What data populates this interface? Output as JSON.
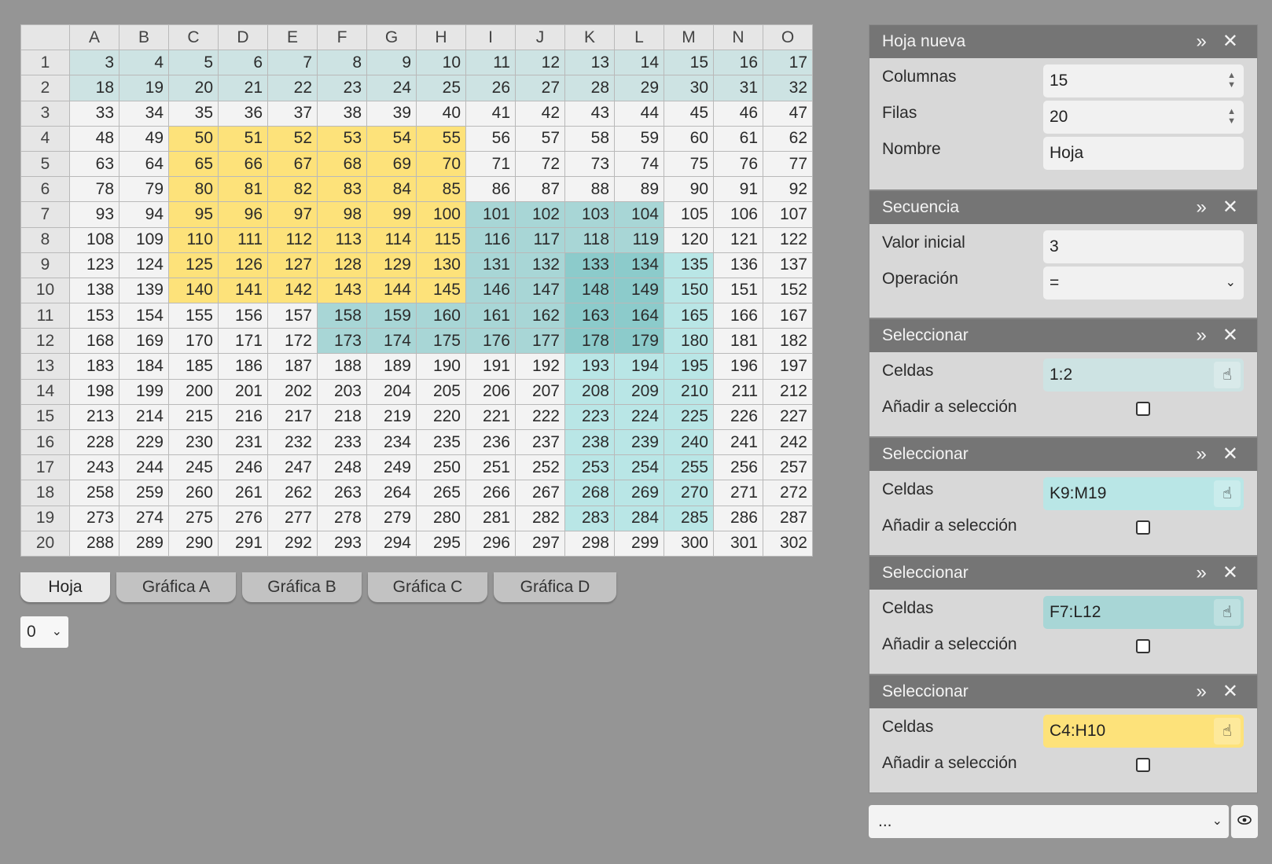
{
  "sheet": {
    "columns": [
      "A",
      "B",
      "C",
      "D",
      "E",
      "F",
      "G",
      "H",
      "I",
      "J",
      "K",
      "L",
      "M",
      "N",
      "O"
    ],
    "rows": [
      [
        3,
        4,
        5,
        6,
        7,
        8,
        9,
        10,
        11,
        12,
        13,
        14,
        15,
        16,
        17
      ],
      [
        18,
        19,
        20,
        21,
        22,
        23,
        24,
        25,
        26,
        27,
        28,
        29,
        30,
        31,
        32
      ],
      [
        33,
        34,
        35,
        36,
        37,
        38,
        39,
        40,
        41,
        42,
        43,
        44,
        45,
        46,
        47
      ],
      [
        48,
        49,
        50,
        51,
        52,
        53,
        54,
        55,
        56,
        57,
        58,
        59,
        60,
        61,
        62
      ],
      [
        63,
        64,
        65,
        66,
        67,
        68,
        69,
        70,
        71,
        72,
        73,
        74,
        75,
        76,
        77
      ],
      [
        78,
        79,
        80,
        81,
        82,
        83,
        84,
        85,
        86,
        87,
        88,
        89,
        90,
        91,
        92
      ],
      [
        93,
        94,
        95,
        96,
        97,
        98,
        99,
        100,
        101,
        102,
        103,
        104,
        105,
        106,
        107
      ],
      [
        108,
        109,
        110,
        111,
        112,
        113,
        114,
        115,
        116,
        117,
        118,
        119,
        120,
        121,
        122
      ],
      [
        123,
        124,
        125,
        126,
        127,
        128,
        129,
        130,
        131,
        132,
        133,
        134,
        135,
        136,
        137
      ],
      [
        138,
        139,
        140,
        141,
        142,
        143,
        144,
        145,
        146,
        147,
        148,
        149,
        150,
        151,
        152
      ],
      [
        153,
        154,
        155,
        156,
        157,
        158,
        159,
        160,
        161,
        162,
        163,
        164,
        165,
        166,
        167
      ],
      [
        168,
        169,
        170,
        171,
        172,
        173,
        174,
        175,
        176,
        177,
        178,
        179,
        180,
        181,
        182
      ],
      [
        183,
        184,
        185,
        186,
        187,
        188,
        189,
        190,
        191,
        192,
        193,
        194,
        195,
        196,
        197
      ],
      [
        198,
        199,
        200,
        201,
        202,
        203,
        204,
        205,
        206,
        207,
        208,
        209,
        210,
        211,
        212
      ],
      [
        213,
        214,
        215,
        216,
        217,
        218,
        219,
        220,
        221,
        222,
        223,
        224,
        225,
        226,
        227
      ],
      [
        228,
        229,
        230,
        231,
        232,
        233,
        234,
        235,
        236,
        237,
        238,
        239,
        240,
        241,
        242
      ],
      [
        243,
        244,
        245,
        246,
        247,
        248,
        249,
        250,
        251,
        252,
        253,
        254,
        255,
        256,
        257
      ],
      [
        258,
        259,
        260,
        261,
        262,
        263,
        264,
        265,
        266,
        267,
        268,
        269,
        270,
        271,
        272
      ],
      [
        273,
        274,
        275,
        276,
        277,
        278,
        279,
        280,
        281,
        282,
        283,
        284,
        285,
        286,
        287
      ],
      [
        288,
        289,
        290,
        291,
        292,
        293,
        294,
        295,
        296,
        297,
        298,
        299,
        300,
        301,
        302
      ]
    ],
    "selections": [
      {
        "range": "1:2",
        "color": "#cde3e3"
      },
      {
        "range": "K9:M19",
        "color": "#b9e6e6"
      },
      {
        "range": "F7:L12",
        "color": "#a8d6d6"
      },
      {
        "range": "C4:H10",
        "color": "#fde27a"
      }
    ]
  },
  "tabs": [
    "Hoja",
    "Gráfica A",
    "Gráfica B",
    "Gráfica C",
    "Gráfica D"
  ],
  "active_tab": "Hoja",
  "sheet_index_select": "0",
  "panels": {
    "new_sheet": {
      "title": "Hoja nueva",
      "columns_label": "Columnas",
      "columns_value": "15",
      "rows_label": "Filas",
      "rows_value": "20",
      "name_label": "Nombre",
      "name_value": "Hoja"
    },
    "sequence": {
      "title": "Secuencia",
      "start_label": "Valor inicial",
      "start_value": "3",
      "op_label": "Operación",
      "op_value": "="
    },
    "select1": {
      "title": "Seleccionar",
      "cells_label": "Celdas",
      "cells_value": "1:2",
      "add_label": "Añadir a selección",
      "color": "#cde3e3"
    },
    "select2": {
      "title": "Seleccionar",
      "cells_label": "Celdas",
      "cells_value": "K9:M19",
      "add_label": "Añadir a selección",
      "color": "#b9e6e6"
    },
    "select3": {
      "title": "Seleccionar",
      "cells_label": "Celdas",
      "cells_value": "F7:L12",
      "add_label": "Añadir a selección",
      "color": "#a8d6d6"
    },
    "select4": {
      "title": "Seleccionar",
      "cells_label": "Celdas",
      "cells_value": "C4:H10",
      "add_label": "Añadir a selección",
      "color": "#fde27a"
    }
  },
  "bottom_select": "...",
  "icons": {
    "expand": "double-chevron-icon",
    "close": "close-icon",
    "picker": "hand-pointer-icon",
    "eye": "eye-icon"
  }
}
